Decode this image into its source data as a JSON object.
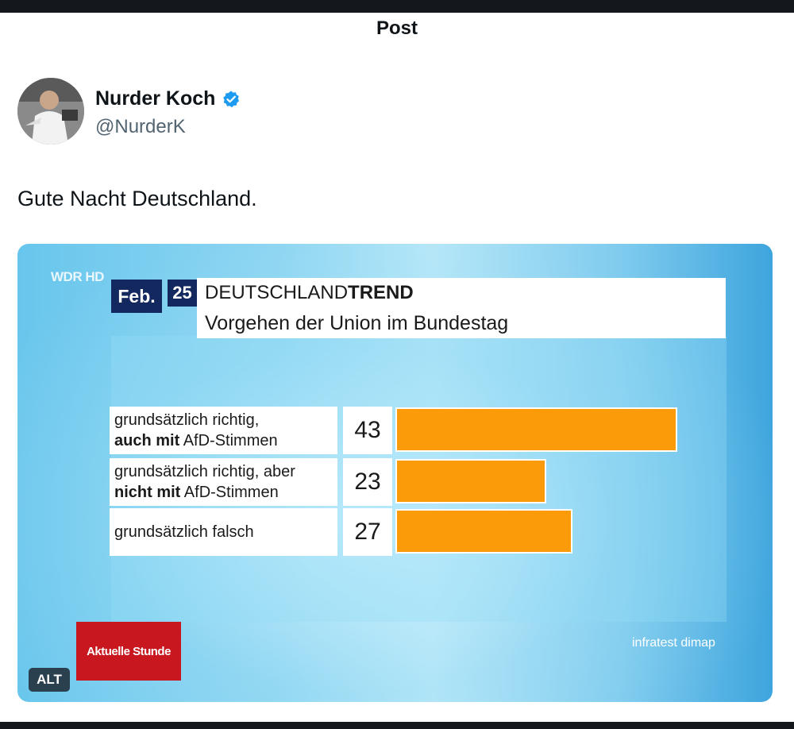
{
  "header": {
    "title": "Post"
  },
  "author": {
    "name": "Nurder Koch",
    "handle": "@NurderK",
    "verified": true,
    "verified_color": "#1d9bf0"
  },
  "post": {
    "text": "Gute Nacht Deutschland."
  },
  "media": {
    "alt_badge": "ALT",
    "broadcaster_logo": "WDR HD",
    "date_month": "Feb.",
    "date_year": "25",
    "title_regular": "DEUTSCHLAND",
    "title_bold": "TREND",
    "subtitle": "Vorgehen der Union im Bundestag",
    "show_logo": "Aktuelle Stunde",
    "source": "infratest dimap",
    "bar_color": "#fb9b0a",
    "chart_data": {
      "type": "bar",
      "orientation": "horizontal",
      "title": "Vorgehen der Union im Bundestag",
      "categories": [
        "grundsätzlich richtig, auch mit AfD-Stimmen",
        "grundsätzlich richtig, aber nicht mit AfD-Stimmen",
        "grundsätzlich falsch"
      ],
      "rows": [
        {
          "line1": "grundsätzlich richtig,",
          "line2_bold": "auch mit",
          "line2_rest": " AfD-Stimmen",
          "value_label": "43"
        },
        {
          "line1": "grundsätzlich richtig, aber",
          "line2_bold": "nicht mit",
          "line2_rest": " AfD-Stimmen",
          "value_label": "23"
        },
        {
          "line1": "grundsätzlich falsch",
          "line2_bold": "",
          "line2_rest": "",
          "value_label": "27"
        }
      ],
      "values": [
        43,
        23,
        27
      ],
      "xlim": [
        0,
        50
      ]
    }
  }
}
